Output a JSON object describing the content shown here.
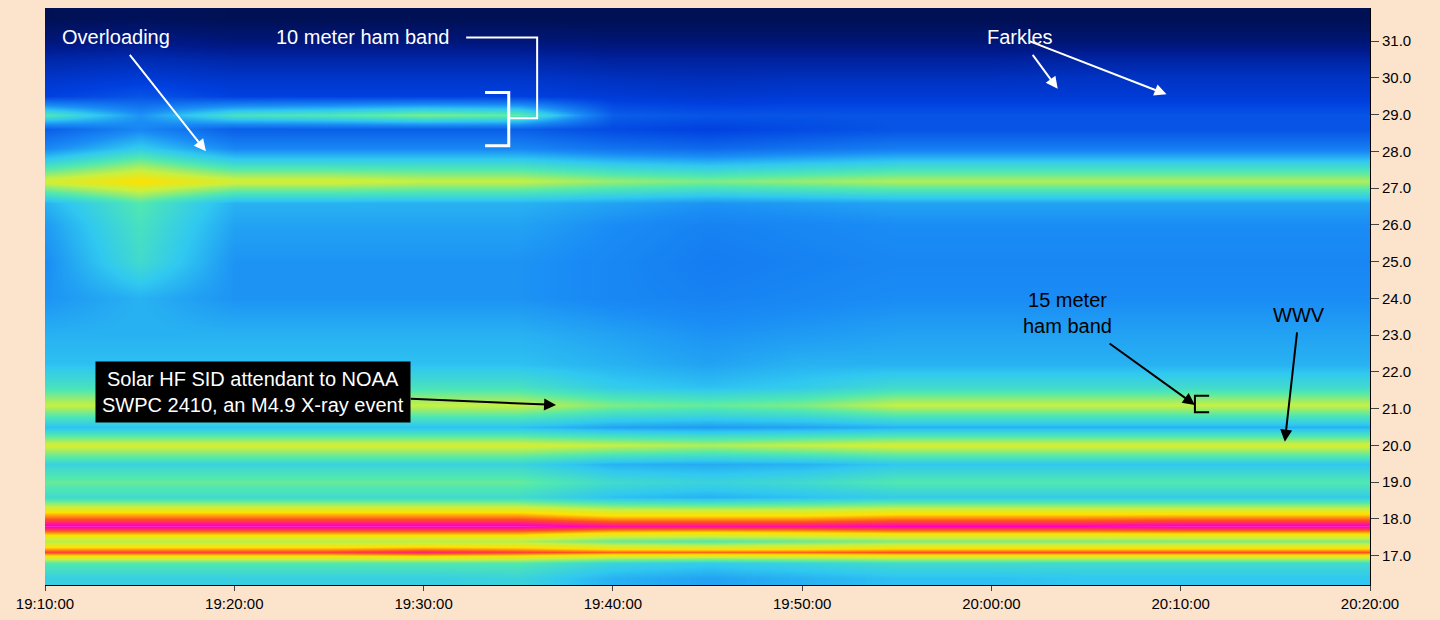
{
  "chart_data": {
    "type": "heatmap",
    "categories": [
      "19:10:00",
      null,
      "19:20:00",
      null,
      "19:30:00",
      null,
      "19:40:00",
      null,
      "19:50:00",
      null,
      "20:00:00",
      null,
      "20:10:00",
      null,
      "20:20:00"
    ],
    "y": [
      16.4,
      16.8,
      17.1,
      17.4,
      17.8,
      18.2,
      18.6,
      19.0,
      19.5,
      20.0,
      20.5,
      21.1,
      21.6,
      22.2,
      23.0,
      24.0,
      25.0,
      26.0,
      26.6,
      27.2,
      27.7,
      28.1,
      28.6,
      29.0,
      29.5,
      30.0,
      30.5,
      31.0,
      31.6
    ],
    "z": [
      [
        55,
        55,
        55,
        55,
        55,
        56,
        50,
        48,
        50,
        52,
        52,
        53,
        53,
        53,
        53
      ],
      [
        62,
        62,
        62,
        62,
        62,
        62,
        56,
        54,
        56,
        58,
        58,
        58,
        58,
        58,
        58
      ],
      [
        88,
        88,
        88,
        88,
        90,
        88,
        86,
        86,
        86,
        87,
        87,
        87,
        87,
        87,
        87
      ],
      [
        70,
        70,
        70,
        70,
        70,
        70,
        64,
        62,
        64,
        66,
        66,
        66,
        66,
        66,
        66
      ],
      [
        94,
        94,
        94,
        94,
        94,
        94,
        92,
        92,
        92,
        93,
        93,
        93,
        94,
        94,
        94
      ],
      [
        80,
        80,
        80,
        80,
        80,
        80,
        76,
        76,
        76,
        78,
        78,
        78,
        78,
        78,
        78
      ],
      [
        58,
        58,
        58,
        58,
        58,
        58,
        52,
        50,
        52,
        54,
        54,
        54,
        54,
        54,
        54
      ],
      [
        64,
        64,
        64,
        64,
        64,
        64,
        58,
        56,
        58,
        62,
        62,
        62,
        62,
        62,
        62
      ],
      [
        56,
        56,
        56,
        56,
        56,
        56,
        50,
        49,
        50,
        53,
        53,
        53,
        53,
        53,
        53
      ],
      [
        74,
        74,
        74,
        74,
        74,
        74,
        72,
        70,
        72,
        74,
        74,
        74,
        74,
        74,
        74
      ],
      [
        52,
        52,
        52,
        52,
        52,
        52,
        48,
        47,
        48,
        50,
        50,
        50,
        50,
        50,
        50
      ],
      [
        72,
        72,
        72,
        72,
        72,
        72,
        66,
        64,
        66,
        72,
        72,
        72,
        72,
        72,
        72
      ],
      [
        60,
        60,
        60,
        60,
        60,
        60,
        54,
        52,
        54,
        58,
        58,
        58,
        58,
        58,
        58
      ],
      [
        52,
        52,
        52,
        52,
        52,
        52,
        50,
        48,
        50,
        50,
        50,
        50,
        50,
        50,
        50
      ],
      [
        50,
        50,
        50,
        50,
        50,
        50,
        48,
        46,
        47,
        48,
        48,
        48,
        48,
        48,
        48
      ],
      [
        46,
        50,
        46,
        46,
        46,
        46,
        44,
        43,
        44,
        45,
        45,
        45,
        45,
        45,
        45
      ],
      [
        45,
        58,
        46,
        46,
        46,
        46,
        44,
        42,
        43,
        44,
        44,
        44,
        44,
        44,
        44
      ],
      [
        47,
        60,
        48,
        48,
        48,
        48,
        45,
        43,
        44,
        45,
        45,
        45,
        45,
        45,
        45
      ],
      [
        50,
        62,
        50,
        50,
        50,
        50,
        48,
        46,
        47,
        48,
        48,
        48,
        48,
        48,
        48
      ],
      [
        74,
        80,
        74,
        74,
        72,
        72,
        68,
        66,
        68,
        70,
        70,
        70,
        70,
        70,
        70
      ],
      [
        56,
        66,
        56,
        56,
        56,
        56,
        52,
        50,
        52,
        54,
        54,
        54,
        54,
        54,
        54
      ],
      [
        44,
        54,
        44,
        44,
        44,
        44,
        40,
        38,
        40,
        42,
        42,
        42,
        42,
        42,
        42
      ],
      [
        36,
        44,
        36,
        36,
        36,
        36,
        32,
        30,
        32,
        34,
        34,
        34,
        34,
        34,
        34
      ],
      [
        62,
        46,
        60,
        62,
        66,
        64,
        36,
        34,
        34,
        34,
        34,
        34,
        34,
        34,
        34
      ],
      [
        30,
        34,
        30,
        30,
        30,
        30,
        28,
        27,
        28,
        28,
        28,
        28,
        28,
        28,
        28
      ],
      [
        26,
        28,
        26,
        26,
        26,
        26,
        24,
        23,
        24,
        24,
        24,
        25,
        25,
        25,
        25
      ],
      [
        20,
        22,
        20,
        20,
        20,
        20,
        18,
        18,
        18,
        18,
        18,
        19,
        19,
        19,
        19
      ],
      [
        12,
        14,
        12,
        12,
        12,
        12,
        11,
        11,
        11,
        11,
        11,
        11,
        11,
        11,
        11
      ],
      [
        6,
        7,
        6,
        6,
        6,
        6,
        6,
        6,
        6,
        6,
        6,
        6,
        6,
        6,
        6
      ]
    ],
    "zlim": [
      0,
      100
    ],
    "ylim": [
      16.2,
      31.9
    ],
    "yticks": [
      {
        "value": 17,
        "label": "17.0"
      },
      {
        "value": 18,
        "label": "18.0"
      },
      {
        "value": 19,
        "label": "19.0"
      },
      {
        "value": 20,
        "label": "20.0"
      },
      {
        "value": 21,
        "label": "21.0"
      },
      {
        "value": 22,
        "label": "22.0"
      },
      {
        "value": 23,
        "label": "23.0"
      },
      {
        "value": 24,
        "label": "24.0"
      },
      {
        "value": 25,
        "label": "25.0"
      },
      {
        "value": 26,
        "label": "26.0"
      },
      {
        "value": 27,
        "label": "27.0"
      },
      {
        "value": 28,
        "label": "28.0"
      },
      {
        "value": 29,
        "label": "29.0"
      },
      {
        "value": 30,
        "label": "30.0"
      },
      {
        "value": 31,
        "label": "31.0"
      }
    ],
    "grid": false,
    "annotations": [
      "Overloading",
      "10 meter ham band",
      "Farkles",
      "15 meter ham band",
      "WWV",
      "Solar HF SID attendant to NOAA SWPC 2410, an M4.9 X-ray event"
    ]
  }
}
